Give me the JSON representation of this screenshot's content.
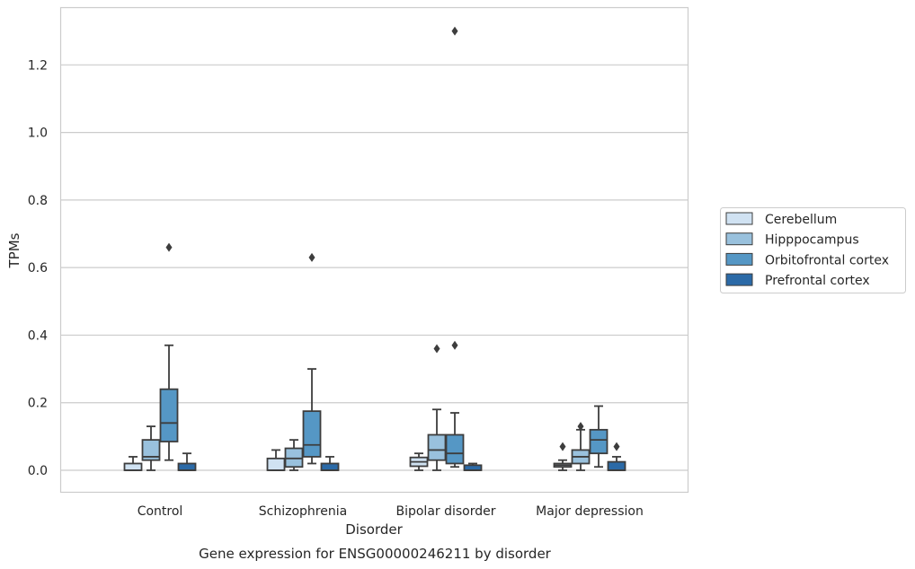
{
  "chart_data": {
    "type": "box",
    "xlabel": "Disorder",
    "ylabel": "TPMs",
    "caption": "Gene expression for ENSG00000246211 by disorder",
    "ylim": [
      -0.065,
      1.375
    ],
    "yticks": [
      "0.0",
      "0.2",
      "0.4",
      "0.6",
      "0.8",
      "1.0",
      "1.2"
    ],
    "ytick_values": [
      0.0,
      0.2,
      0.4,
      0.6,
      0.8,
      1.0,
      1.2
    ],
    "grid": "horizontal",
    "legend_position": "right",
    "categories": [
      "Control",
      "Schizophrenia",
      "Bipolar disorder",
      "Major depression"
    ],
    "series": [
      {
        "name": "Cerebellum",
        "color": "#d0e2f2",
        "boxes": [
          {
            "whislo": 0.0,
            "q1": 0.0,
            "med": 0.0,
            "q3": 0.02,
            "whishi": 0.04,
            "fliers": []
          },
          {
            "whislo": 0.0,
            "q1": 0.0,
            "med": 0.0,
            "q3": 0.035,
            "whishi": 0.06,
            "fliers": []
          },
          {
            "whislo": 0.0,
            "q1": 0.012,
            "med": 0.025,
            "q3": 0.038,
            "whishi": 0.05,
            "fliers": []
          },
          {
            "whislo": 0.0,
            "q1": 0.01,
            "med": 0.015,
            "q3": 0.02,
            "whishi": 0.03,
            "fliers": []
          }
        ]
      },
      {
        "name": "Hipppocampus",
        "color": "#99c1dd",
        "boxes": [
          {
            "whislo": 0.0,
            "q1": 0.03,
            "med": 0.04,
            "q3": 0.09,
            "whishi": 0.13,
            "fliers": []
          },
          {
            "whislo": 0.0,
            "q1": 0.01,
            "med": 0.035,
            "q3": 0.065,
            "whishi": 0.09,
            "fliers": []
          },
          {
            "whislo": 0.0,
            "q1": 0.03,
            "med": 0.06,
            "q3": 0.105,
            "whishi": 0.18,
            "fliers": [
              0.36
            ]
          },
          {
            "whislo": 0.0,
            "q1": 0.02,
            "med": 0.04,
            "q3": 0.06,
            "whishi": 0.12,
            "fliers": [
              0.13
            ]
          }
        ]
      },
      {
        "name": "Orbitofrontal cortex",
        "color": "#5597c5",
        "boxes": [
          {
            "whislo": 0.03,
            "q1": 0.085,
            "med": 0.14,
            "q3": 0.24,
            "whishi": 0.37,
            "fliers": [
              0.66
            ]
          },
          {
            "whislo": 0.02,
            "q1": 0.04,
            "med": 0.075,
            "q3": 0.175,
            "whishi": 0.3,
            "fliers": [
              0.63
            ]
          },
          {
            "whislo": 0.01,
            "q1": 0.02,
            "med": 0.05,
            "q3": 0.105,
            "whishi": 0.17,
            "fliers": [
              0.37,
              1.3
            ]
          },
          {
            "whislo": 0.01,
            "q1": 0.05,
            "med": 0.09,
            "q3": 0.12,
            "whishi": 0.19,
            "fliers": []
          }
        ]
      },
      {
        "name": "Prefrontal cortex",
        "color": "#2b6aa7",
        "boxes": [
          {
            "whislo": 0.0,
            "q1": 0.0,
            "med": 0.0,
            "q3": 0.02,
            "whishi": 0.05,
            "fliers": []
          },
          {
            "whislo": 0.0,
            "q1": 0.0,
            "med": 0.0,
            "q3": 0.02,
            "whishi": 0.04,
            "fliers": []
          },
          {
            "whislo": 0.0,
            "q1": 0.0,
            "med": 0.0,
            "q3": 0.015,
            "whishi": 0.02,
            "fliers": []
          },
          {
            "whislo": 0.0,
            "q1": 0.0,
            "med": 0.0,
            "q3": 0.025,
            "whishi": 0.04,
            "fliers": [
              0.07
            ]
          }
        ]
      }
    ],
    "extra_fliers": [
      {
        "category": "Major depression",
        "series": "Cerebellum",
        "value": 0.07
      }
    ]
  }
}
